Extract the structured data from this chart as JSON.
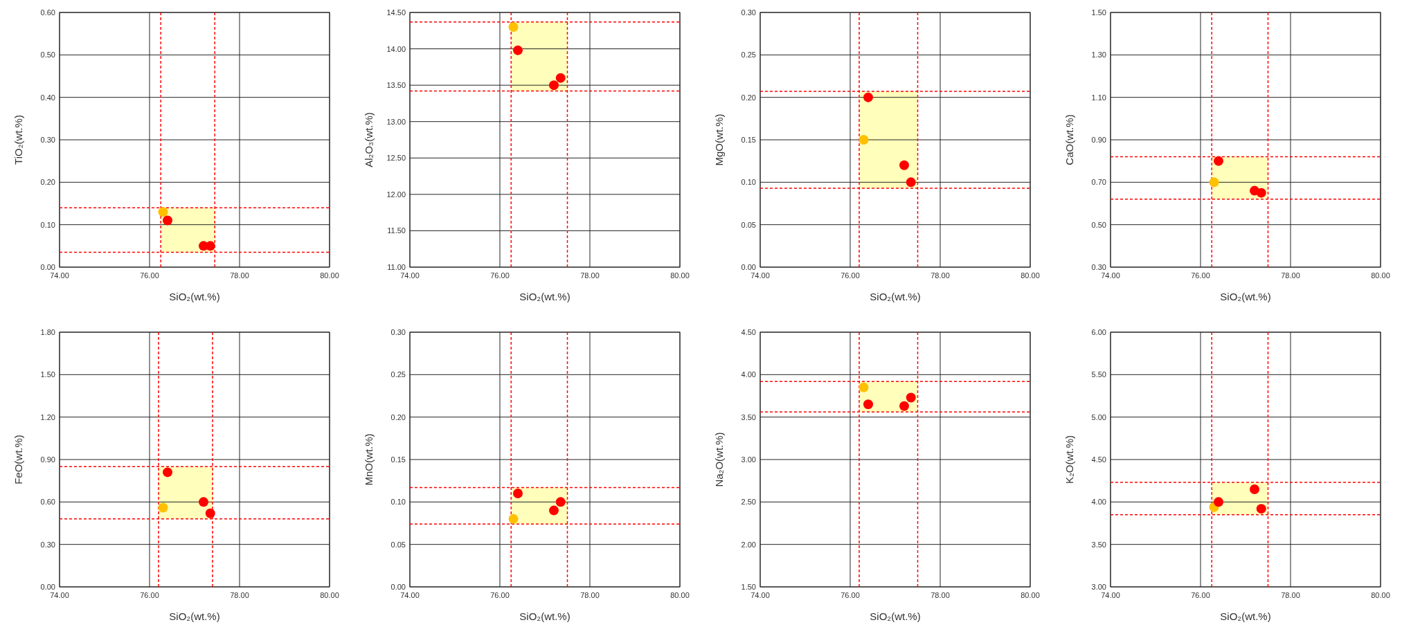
{
  "chart_data": [
    {
      "type": "scatter",
      "xlabel": "SiO₂(wt.%)",
      "ylabel": "TiO₂(wt.%)",
      "xlim": [
        74,
        80
      ],
      "ylim": [
        0,
        0.6
      ],
      "xticks": [
        {
          "value": 74,
          "label": "74.00"
        },
        {
          "value": 76,
          "label": "76.00"
        },
        {
          "value": 78,
          "label": "78.00"
        },
        {
          "value": 80,
          "label": "80.00"
        }
      ],
      "yticks": [
        {
          "value": 0,
          "label": "0.00"
        },
        {
          "value": 0.1,
          "label": "0.10"
        },
        {
          "value": 0.2,
          "label": "0.20"
        },
        {
          "value": 0.3,
          "label": "0.30"
        },
        {
          "value": 0.4,
          "label": "0.40"
        },
        {
          "value": 0.5,
          "label": "0.50"
        },
        {
          "value": 0.6,
          "label": "0.60"
        }
      ],
      "grid": true,
      "marker": "circle",
      "series": [
        {
          "color": "#ffc000",
          "x": [
            76.3
          ],
          "values": [
            0.13
          ]
        },
        {
          "color": "#ff0000",
          "x": [
            76.4,
            77.2,
            77.35
          ],
          "values": [
            0.11,
            0.05,
            0.05
          ]
        }
      ],
      "ref_lines": [
        {
          "axis": "x",
          "value": 76.25,
          "color": "#ff0000",
          "line_style": "dashed"
        },
        {
          "axis": "x",
          "value": 77.45,
          "color": "#ff0000",
          "line_style": "dashed"
        },
        {
          "axis": "y",
          "value": 0.035,
          "color": "#ff0000",
          "line_style": "dashed"
        },
        {
          "axis": "y",
          "value": 0.14,
          "color": "#ff0000",
          "line_style": "dashed"
        }
      ],
      "bands": [
        {
          "axis": "x",
          "from": 76.25,
          "to": 77.45,
          "color": "#ffffbb"
        }
      ]
    },
    {
      "type": "scatter",
      "xlabel": "SiO₂(wt.%)",
      "ylabel": "Al₂O₃(wt.%)",
      "xlim": [
        74,
        80
      ],
      "ylim": [
        11,
        14.5
      ],
      "xticks": [
        {
          "value": 74,
          "label": "74.00"
        },
        {
          "value": 76,
          "label": "76.00"
        },
        {
          "value": 78,
          "label": "78.00"
        },
        {
          "value": 80,
          "label": "80.00"
        }
      ],
      "yticks": [
        {
          "value": 11,
          "label": "11.00"
        },
        {
          "value": 11.5,
          "label": "11.50"
        },
        {
          "value": 12,
          "label": "12.00"
        },
        {
          "value": 12.5,
          "label": "12.50"
        },
        {
          "value": 13,
          "label": "13.00"
        },
        {
          "value": 13.5,
          "label": "13.50"
        },
        {
          "value": 14,
          "label": "14.00"
        },
        {
          "value": 14.5,
          "label": "14.50"
        }
      ],
      "grid": true,
      "marker": "circle",
      "series": [
        {
          "color": "#ffc000",
          "x": [
            76.3
          ],
          "values": [
            14.3
          ]
        },
        {
          "color": "#ff0000",
          "x": [
            76.4,
            77.2,
            77.35
          ],
          "values": [
            13.98,
            13.5,
            13.6
          ]
        }
      ],
      "ref_lines": [
        {
          "axis": "x",
          "value": 76.25,
          "color": "#ff0000",
          "line_style": "dashed"
        },
        {
          "axis": "x",
          "value": 77.5,
          "color": "#ff0000",
          "line_style": "dashed"
        },
        {
          "axis": "y",
          "value": 13.42,
          "color": "#ff0000",
          "line_style": "dashed"
        },
        {
          "axis": "y",
          "value": 14.37,
          "color": "#ff0000",
          "line_style": "dashed"
        }
      ],
      "bands": [
        {
          "axis": "x",
          "from": 76.25,
          "to": 77.5,
          "color": "#ffffbb"
        }
      ]
    },
    {
      "type": "scatter",
      "xlabel": "SiO₂(wt.%)",
      "ylabel": "MgO(wt.%)",
      "xlim": [
        74,
        80
      ],
      "ylim": [
        0,
        0.3
      ],
      "xticks": [
        {
          "value": 74,
          "label": "74.00"
        },
        {
          "value": 76,
          "label": "76.00"
        },
        {
          "value": 78,
          "label": "78.00"
        },
        {
          "value": 80,
          "label": "80.00"
        }
      ],
      "yticks": [
        {
          "value": 0,
          "label": "0.00"
        },
        {
          "value": 0.05,
          "label": "0.05"
        },
        {
          "value": 0.1,
          "label": "0.10"
        },
        {
          "value": 0.15,
          "label": "0.15"
        },
        {
          "value": 0.2,
          "label": "0.20"
        },
        {
          "value": 0.25,
          "label": "0.25"
        },
        {
          "value": 0.3,
          "label": "0.30"
        }
      ],
      "grid": true,
      "marker": "circle",
      "series": [
        {
          "color": "#ffc000",
          "x": [
            76.3
          ],
          "values": [
            0.15
          ]
        },
        {
          "color": "#ff0000",
          "x": [
            76.4,
            77.2,
            77.35
          ],
          "values": [
            0.2,
            0.12,
            0.1
          ]
        }
      ],
      "ref_lines": [
        {
          "axis": "x",
          "value": 76.2,
          "color": "#ff0000",
          "line_style": "dashed"
        },
        {
          "axis": "x",
          "value": 77.5,
          "color": "#ff0000",
          "line_style": "dashed"
        },
        {
          "axis": "y",
          "value": 0.093,
          "color": "#ff0000",
          "line_style": "dashed"
        },
        {
          "axis": "y",
          "value": 0.207,
          "color": "#ff0000",
          "line_style": "dashed"
        }
      ],
      "bands": [
        {
          "axis": "x",
          "from": 76.2,
          "to": 77.5,
          "color": "#ffffbb"
        }
      ]
    },
    {
      "type": "scatter",
      "xlabel": "SiO₂(wt.%)",
      "ylabel": "CaO(wt.%)",
      "xlim": [
        74,
        80
      ],
      "ylim": [
        0.3,
        1.5
      ],
      "xticks": [
        {
          "value": 74,
          "label": "74.00"
        },
        {
          "value": 76,
          "label": "76.00"
        },
        {
          "value": 78,
          "label": "78.00"
        },
        {
          "value": 80,
          "label": "80.00"
        }
      ],
      "yticks": [
        {
          "value": 0.3,
          "label": "0.30"
        },
        {
          "value": 0.5,
          "label": "0.50"
        },
        {
          "value": 0.7,
          "label": "0.70"
        },
        {
          "value": 0.9,
          "label": "0.90"
        },
        {
          "value": 1.1,
          "label": "1.10"
        },
        {
          "value": 1.3,
          "label": "1.30"
        },
        {
          "value": 1.5,
          "label": "1.50"
        }
      ],
      "grid": true,
      "marker": "circle",
      "series": [
        {
          "color": "#ffc000",
          "x": [
            76.3
          ],
          "values": [
            0.7
          ]
        },
        {
          "color": "#ff0000",
          "x": [
            76.4,
            77.2,
            77.35
          ],
          "values": [
            0.8,
            0.66,
            0.65
          ]
        }
      ],
      "ref_lines": [
        {
          "axis": "x",
          "value": 76.25,
          "color": "#ff0000",
          "line_style": "dashed"
        },
        {
          "axis": "x",
          "value": 77.5,
          "color": "#ff0000",
          "line_style": "dashed"
        },
        {
          "axis": "y",
          "value": 0.62,
          "color": "#ff0000",
          "line_style": "dashed"
        },
        {
          "axis": "y",
          "value": 0.82,
          "color": "#ff0000",
          "line_style": "dashed"
        }
      ],
      "bands": [
        {
          "axis": "x",
          "from": 76.25,
          "to": 77.5,
          "color": "#ffffbb"
        }
      ]
    },
    {
      "type": "scatter",
      "xlabel": "SiO₂(wt.%)",
      "ylabel": "FeO(wt.%)",
      "xlim": [
        74,
        80
      ],
      "ylim": [
        0,
        1.8
      ],
      "xticks": [
        {
          "value": 74,
          "label": "74.00"
        },
        {
          "value": 76,
          "label": "76.00"
        },
        {
          "value": 78,
          "label": "78.00"
        },
        {
          "value": 80,
          "label": "80.00"
        }
      ],
      "yticks": [
        {
          "value": 0,
          "label": "0.00"
        },
        {
          "value": 0.3,
          "label": "0.30"
        },
        {
          "value": 0.6,
          "label": "0.60"
        },
        {
          "value": 0.9,
          "label": "0.90"
        },
        {
          "value": 1.2,
          "label": "1.20"
        },
        {
          "value": 1.5,
          "label": "1.50"
        },
        {
          "value": 1.8,
          "label": "1.80"
        }
      ],
      "grid": true,
      "marker": "circle",
      "series": [
        {
          "color": "#ffc000",
          "x": [
            76.3
          ],
          "values": [
            0.56
          ]
        },
        {
          "color": "#ff0000",
          "x": [
            76.4,
            77.2,
            77.35
          ],
          "values": [
            0.81,
            0.6,
            0.52
          ]
        }
      ],
      "ref_lines": [
        {
          "axis": "x",
          "value": 76.2,
          "color": "#ff0000",
          "line_style": "dashed"
        },
        {
          "axis": "x",
          "value": 77.4,
          "color": "#ff0000",
          "line_style": "dashed"
        },
        {
          "axis": "y",
          "value": 0.48,
          "color": "#ff0000",
          "line_style": "dashed"
        },
        {
          "axis": "y",
          "value": 0.85,
          "color": "#ff0000",
          "line_style": "dashed"
        }
      ],
      "bands": [
        {
          "axis": "x",
          "from": 76.2,
          "to": 77.4,
          "color": "#ffffbb"
        }
      ]
    },
    {
      "type": "scatter",
      "xlabel": "SiO₂(wt.%)",
      "ylabel": "MnO(wt.%)",
      "xlim": [
        74,
        80
      ],
      "ylim": [
        0,
        0.3
      ],
      "xticks": [
        {
          "value": 74,
          "label": "74.00"
        },
        {
          "value": 76,
          "label": "76.00"
        },
        {
          "value": 78,
          "label": "78.00"
        },
        {
          "value": 80,
          "label": "80.00"
        }
      ],
      "yticks": [
        {
          "value": 0,
          "label": "0.00"
        },
        {
          "value": 0.05,
          "label": "0.05"
        },
        {
          "value": 0.1,
          "label": "0.10"
        },
        {
          "value": 0.15,
          "label": "0.15"
        },
        {
          "value": 0.2,
          "label": "0.20"
        },
        {
          "value": 0.25,
          "label": "0.25"
        },
        {
          "value": 0.3,
          "label": "0.30"
        }
      ],
      "grid": true,
      "marker": "circle",
      "series": [
        {
          "color": "#ffc000",
          "x": [
            76.3
          ],
          "values": [
            0.08
          ]
        },
        {
          "color": "#ff0000",
          "x": [
            76.4,
            77.2,
            77.35
          ],
          "values": [
            0.11,
            0.09,
            0.1
          ]
        }
      ],
      "ref_lines": [
        {
          "axis": "x",
          "value": 76.25,
          "color": "#ff0000",
          "line_style": "dashed"
        },
        {
          "axis": "x",
          "value": 77.5,
          "color": "#ff0000",
          "line_style": "dashed"
        },
        {
          "axis": "y",
          "value": 0.074,
          "color": "#ff0000",
          "line_style": "dashed"
        },
        {
          "axis": "y",
          "value": 0.117,
          "color": "#ff0000",
          "line_style": "dashed"
        }
      ],
      "bands": [
        {
          "axis": "x",
          "from": 76.25,
          "to": 77.5,
          "color": "#ffffbb"
        }
      ]
    },
    {
      "type": "scatter",
      "xlabel": "SiO₂(wt.%)",
      "ylabel": "Na₂O(wt.%)",
      "xlim": [
        74,
        80
      ],
      "ylim": [
        1.5,
        4.5
      ],
      "xticks": [
        {
          "value": 74,
          "label": "74.00"
        },
        {
          "value": 76,
          "label": "76.00"
        },
        {
          "value": 78,
          "label": "78.00"
        },
        {
          "value": 80,
          "label": "80.00"
        }
      ],
      "yticks": [
        {
          "value": 1.5,
          "label": "1.50"
        },
        {
          "value": 2,
          "label": "2.00"
        },
        {
          "value": 2.5,
          "label": "2.50"
        },
        {
          "value": 3,
          "label": "3.00"
        },
        {
          "value": 3.5,
          "label": "3.50"
        },
        {
          "value": 4,
          "label": "4.00"
        },
        {
          "value": 4.5,
          "label": "4.50"
        }
      ],
      "grid": true,
      "marker": "circle",
      "series": [
        {
          "color": "#ffc000",
          "x": [
            76.3
          ],
          "values": [
            3.85
          ]
        },
        {
          "color": "#ff0000",
          "x": [
            76.4,
            77.2,
            77.35
          ],
          "values": [
            3.65,
            3.63,
            3.73
          ]
        }
      ],
      "ref_lines": [
        {
          "axis": "x",
          "value": 76.2,
          "color": "#ff0000",
          "line_style": "dashed"
        },
        {
          "axis": "x",
          "value": 77.5,
          "color": "#ff0000",
          "line_style": "dashed"
        },
        {
          "axis": "y",
          "value": 3.56,
          "color": "#ff0000",
          "line_style": "dashed"
        },
        {
          "axis": "y",
          "value": 3.92,
          "color": "#ff0000",
          "line_style": "dashed"
        }
      ],
      "bands": [
        {
          "axis": "x",
          "from": 76.2,
          "to": 77.5,
          "color": "#ffffbb"
        }
      ]
    },
    {
      "type": "scatter",
      "xlabel": "SiO₂(wt.%)",
      "ylabel": "K₂O(wt.%)",
      "xlim": [
        74,
        80
      ],
      "ylim": [
        3,
        6
      ],
      "xticks": [
        {
          "value": 74,
          "label": "74.00"
        },
        {
          "value": 76,
          "label": "76.00"
        },
        {
          "value": 78,
          "label": "78.00"
        },
        {
          "value": 80,
          "label": "80.00"
        }
      ],
      "yticks": [
        {
          "value": 3,
          "label": "3.00"
        },
        {
          "value": 3.5,
          "label": "3.50"
        },
        {
          "value": 4,
          "label": "4.00"
        },
        {
          "value": 4.5,
          "label": "4.50"
        },
        {
          "value": 5,
          "label": "5.00"
        },
        {
          "value": 5.5,
          "label": "5.50"
        },
        {
          "value": 6,
          "label": "6.00"
        }
      ],
      "grid": true,
      "marker": "circle",
      "series": [
        {
          "color": "#ffc000",
          "x": [
            76.3
          ],
          "values": [
            3.94
          ]
        },
        {
          "color": "#ff0000",
          "x": [
            76.4,
            77.2,
            77.35
          ],
          "values": [
            4.0,
            4.15,
            3.92
          ]
        }
      ],
      "ref_lines": [
        {
          "axis": "x",
          "value": 76.25,
          "color": "#ff0000",
          "line_style": "dashed"
        },
        {
          "axis": "x",
          "value": 77.5,
          "color": "#ff0000",
          "line_style": "dashed"
        },
        {
          "axis": "y",
          "value": 3.85,
          "color": "#ff0000",
          "line_style": "dashed"
        },
        {
          "axis": "y",
          "value": 4.23,
          "color": "#ff0000",
          "line_style": "dashed"
        }
      ],
      "bands": [
        {
          "axis": "x",
          "from": 76.25,
          "to": 77.5,
          "color": "#ffffbb"
        }
      ]
    }
  ]
}
